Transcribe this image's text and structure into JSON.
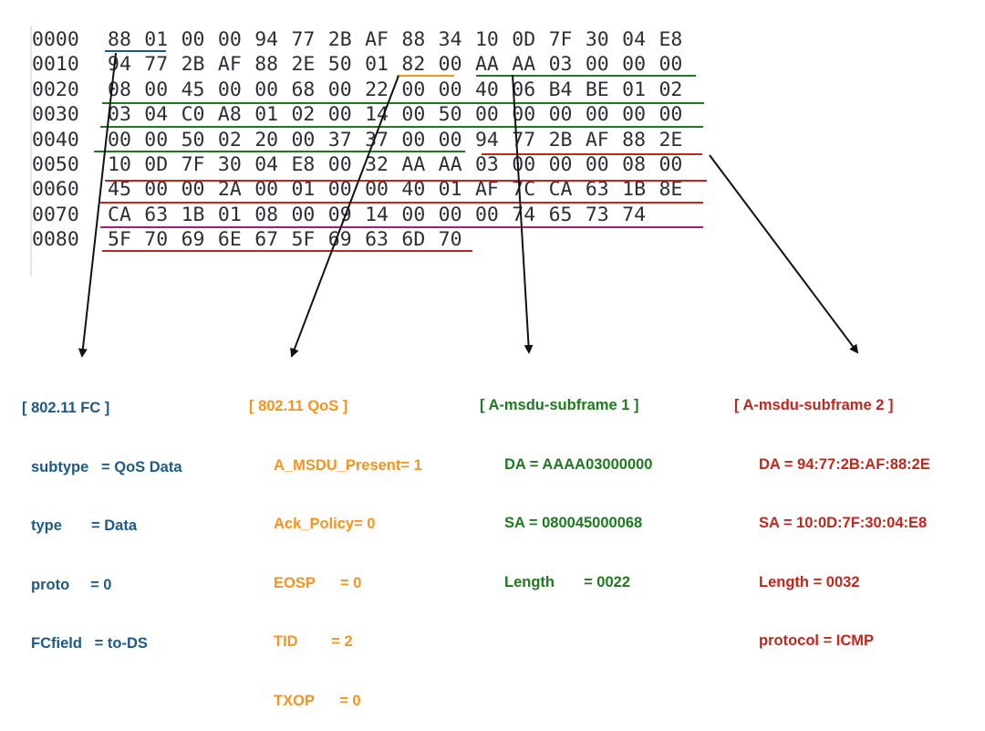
{
  "hexdump": [
    {
      "offset": "0000",
      "bytes": [
        "88",
        "01",
        "00",
        "00",
        "94",
        "77",
        "2B",
        "AF",
        "88",
        "34",
        "10",
        "0D",
        "7F",
        "30",
        "04",
        "E8"
      ]
    },
    {
      "offset": "0010",
      "bytes": [
        "94",
        "77",
        "2B",
        "AF",
        "88",
        "2E",
        "50",
        "01",
        "82",
        "00",
        "AA",
        "AA",
        "03",
        "00",
        "00",
        "00"
      ]
    },
    {
      "offset": "0020",
      "bytes": [
        "08",
        "00",
        "45",
        "00",
        "00",
        "68",
        "00",
        "22",
        "00",
        "00",
        "40",
        "06",
        "B4",
        "BE",
        "01",
        "02"
      ]
    },
    {
      "offset": "0030",
      "bytes": [
        "03",
        "04",
        "C0",
        "A8",
        "01",
        "02",
        "00",
        "14",
        "00",
        "50",
        "00",
        "00",
        "00",
        "00",
        "00",
        "00"
      ]
    },
    {
      "offset": "0040",
      "bytes": [
        "00",
        "00",
        "50",
        "02",
        "20",
        "00",
        "37",
        "37",
        "00",
        "00",
        "94",
        "77",
        "2B",
        "AF",
        "88",
        "2E"
      ]
    },
    {
      "offset": "0050",
      "bytes": [
        "10",
        "0D",
        "7F",
        "30",
        "04",
        "E8",
        "00",
        "32",
        "AA",
        "AA",
        "03",
        "00",
        "00",
        "00",
        "08",
        "00"
      ]
    },
    {
      "offset": "0060",
      "bytes": [
        "45",
        "00",
        "00",
        "2A",
        "00",
        "01",
        "00",
        "00",
        "40",
        "01",
        "AF",
        "7C",
        "CA",
        "63",
        "1B",
        "8E"
      ]
    },
    {
      "offset": "0070",
      "bytes": [
        "CA",
        "63",
        "1B",
        "01",
        "08",
        "00",
        "09",
        "14",
        "00",
        "00",
        "00",
        "74",
        "65",
        "73",
        "74"
      ]
    },
    {
      "offset": "0080",
      "bytes": [
        "5F",
        "70",
        "69",
        "6E",
        "67",
        "5F",
        "69",
        "63",
        "6D",
        "70"
      ]
    }
  ],
  "colors": {
    "fc": "#1d5a8a",
    "qos": "#f7931e",
    "subframe1": "#1e7a1e",
    "subframe2": "#c0281c",
    "payload": "#a0206a",
    "arrow": "#111111"
  },
  "annotations": {
    "fc": {
      "title": "[ 802.11 FC ]",
      "fields": [
        "subtype   = QoS Data",
        "type       = Data",
        "proto     = 0",
        "FCfield   = to-DS"
      ]
    },
    "qos": {
      "title": "[ 802.11 QoS ]",
      "fields": [
        "A_MSDU_Present= 1",
        "Ack_Policy= 0",
        "EOSP      = 0",
        "TID        = 2",
        "TXOP      = 0"
      ]
    },
    "subframe1": {
      "title": "[ A-msdu-subframe 1 ]",
      "fields": [
        "DA = AAAA03000000",
        "SA = 080045000068",
        "Length       = 0022"
      ]
    },
    "subframe2": {
      "title": "[ A-msdu-subframe 2 ]",
      "fields": [
        "DA = 94:77:2B:AF:88:2E",
        "SA = 10:0D:7F:30:04:E8",
        "Length = 0032",
        "protocol = ICMP"
      ]
    }
  }
}
